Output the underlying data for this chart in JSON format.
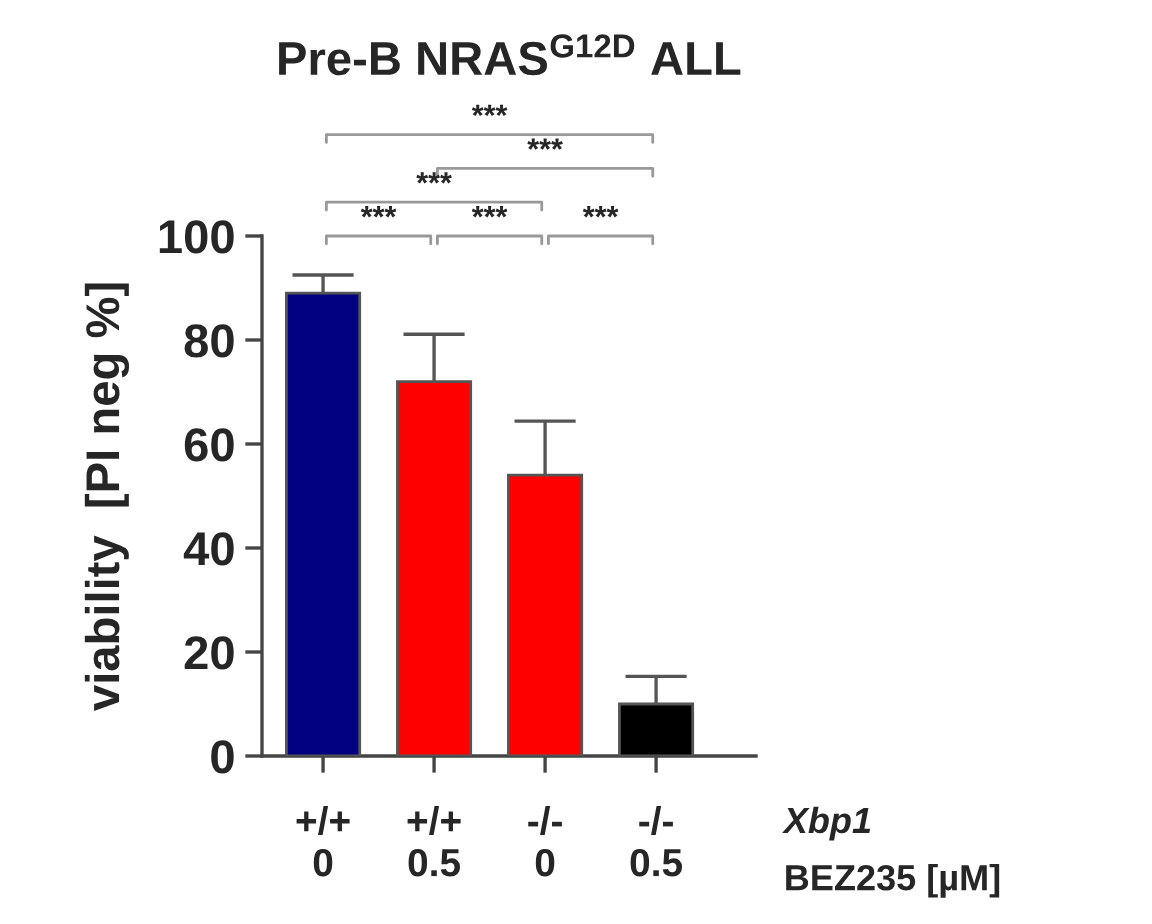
{
  "chart_data": {
    "type": "bar",
    "title": "Pre-B NRAS$^{G12D}$ ALL",
    "ylabel": "viability  [PI neg %]",
    "categories": [
      "+/+\n0",
      "+/+\n0.5",
      "-/-\n0",
      "-/-\n0.5"
    ],
    "values": [
      89,
      72,
      54,
      10
    ],
    "errors": [
      3.5,
      9.1,
      10.4,
      5.3
    ],
    "colors": [
      "#000080",
      "#ff0000",
      "#ff0000",
      "#000000"
    ],
    "ylim": [
      0,
      100
    ],
    "yticks": [
      0,
      20,
      40,
      60,
      80,
      100
    ],
    "grid": false,
    "annotations": [
      "***",
      "***",
      "***",
      "***",
      "***",
      "***",
      "Xbp1",
      "BEZ235 [µM]"
    ]
  }
}
